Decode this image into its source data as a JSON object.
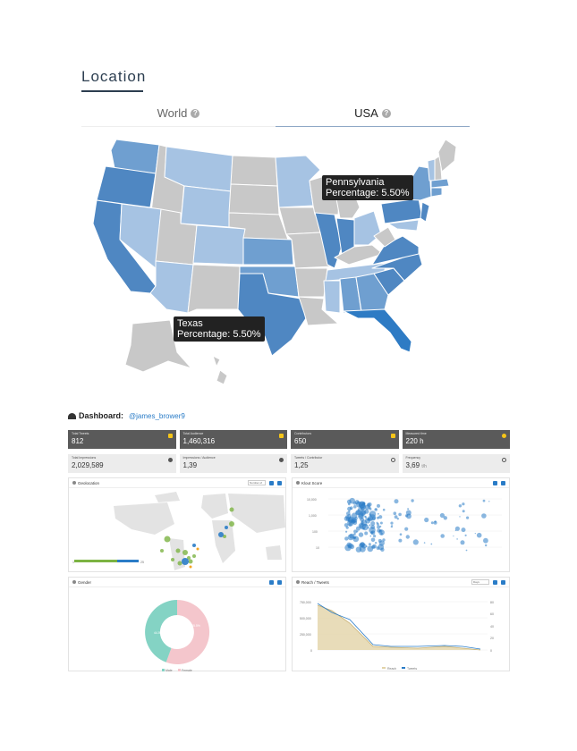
{
  "location": {
    "title": "Location",
    "tabs": [
      {
        "label": "World",
        "active": false
      },
      {
        "label": "USA",
        "active": true
      }
    ],
    "tooltips": [
      {
        "state": "Pennsylvania",
        "text": "Percentage: 5.50%"
      },
      {
        "state": "Texas",
        "text": "Percentage: 5.50%"
      }
    ],
    "colors": {
      "dark": "#4f87c2",
      "mid": "#6f9fd0",
      "light": "#a6c3e3",
      "none": "#c8c8c8",
      "deep": "#2e7bc4"
    }
  },
  "dashboard": {
    "title": "Dashboard:",
    "user": "@james_brower9",
    "stats_top": [
      {
        "label": "Total Tweets",
        "value": "812"
      },
      {
        "label": "Total Audience",
        "value": "1,460,316"
      },
      {
        "label": "Contributors",
        "value": "650"
      },
      {
        "label": "Measured time",
        "value": "220 h"
      }
    ],
    "stats_bottom": [
      {
        "label": "Total Impressions",
        "value": "2,029,589"
      },
      {
        "label": "Impressions / Audience",
        "value": "1,39"
      },
      {
        "label": "Tweets / Contributor",
        "value": "1,25"
      },
      {
        "label": "Frequency",
        "value": "3,69",
        "unit": "t/h"
      }
    ],
    "panels": {
      "geolocation": {
        "title": "Geolocation",
        "select": "Number of",
        "scale_min": "1",
        "scale_max": "25"
      },
      "klout": {
        "title": "Klout Score",
        "y_ticks": [
          "10,000",
          "1,000",
          "100",
          "10"
        ]
      },
      "gender": {
        "title": "Gender",
        "male_pct": "44.5%",
        "female_pct": "55.5%",
        "legend": [
          "Male",
          "Female"
        ]
      },
      "reach": {
        "title": "Reach / Tweets",
        "select": "Days",
        "legend": [
          "Reach",
          "Tweets"
        ],
        "y_ticks": [
          "750,000",
          "500,000",
          "250,000",
          "0"
        ],
        "y2_ticks": [
          "80",
          "60",
          "40",
          "20",
          "0"
        ]
      }
    }
  }
}
